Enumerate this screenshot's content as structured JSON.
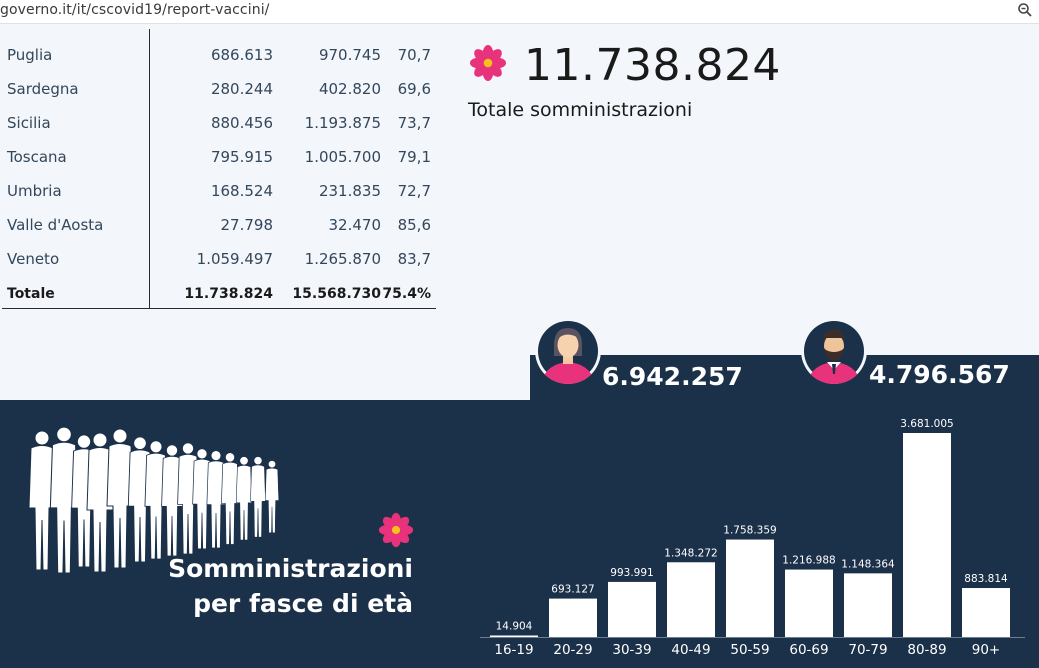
{
  "browser": {
    "url": "governo.it/it/cscovid19/report-vaccini/"
  },
  "table": {
    "rows": [
      {
        "name": "Puglia",
        "somministrate": "686.613",
        "consegnate": "970.745",
        "pct": "70,7"
      },
      {
        "name": "Sardegna",
        "somministrate": "280.244",
        "consegnate": "402.820",
        "pct": "69,6"
      },
      {
        "name": "Sicilia",
        "somministrate": "880.456",
        "consegnate": "1.193.875",
        "pct": "73,7"
      },
      {
        "name": "Toscana",
        "somministrate": "795.915",
        "consegnate": "1.005.700",
        "pct": "79,1"
      },
      {
        "name": "Umbria",
        "somministrate": "168.524",
        "consegnate": "231.835",
        "pct": "72,7"
      },
      {
        "name": "Valle d'Aosta",
        "somministrate": "27.798",
        "consegnate": "32.470",
        "pct": "85,6"
      },
      {
        "name": "Veneto",
        "somministrate": "1.059.497",
        "consegnate": "1.265.870",
        "pct": "83,7"
      }
    ],
    "total": {
      "name": "Totale",
      "somministrate": "11.738.824",
      "consegnate": "15.568.730",
      "pct": "75.4%"
    }
  },
  "summary": {
    "total_value": "11.738.824",
    "total_label": "Totale somministrazioni",
    "female_value": "6.942.257",
    "male_value": "4.796.567"
  },
  "age_section": {
    "title_line1": "Somministrazioni",
    "title_line2": "per fasce di età"
  },
  "colors": {
    "dark_bg": "#1b3049",
    "flower": "#e8337c",
    "flower_center": "#f6c21a",
    "bar": "#ffffff"
  },
  "icons": [
    "zoom-icon",
    "flower-icon",
    "female-avatar-icon",
    "male-avatar-icon",
    "crowd-illustration"
  ],
  "chart_data": {
    "type": "bar",
    "categories": [
      "16-19",
      "20-29",
      "30-39",
      "40-49",
      "50-59",
      "60-69",
      "70-79",
      "80-89",
      "90+"
    ],
    "values": [
      14904,
      693127,
      993991,
      1348272,
      1758359,
      1216988,
      1148364,
      3681005,
      883814
    ],
    "labels": [
      "14.904",
      "693.127",
      "993.991",
      "1.348.272",
      "1.758.359",
      "1.216.988",
      "1.148.364",
      "3.681.005",
      "883.814"
    ],
    "ylim": [
      0,
      3681005
    ],
    "grid": false,
    "legend": "none"
  }
}
